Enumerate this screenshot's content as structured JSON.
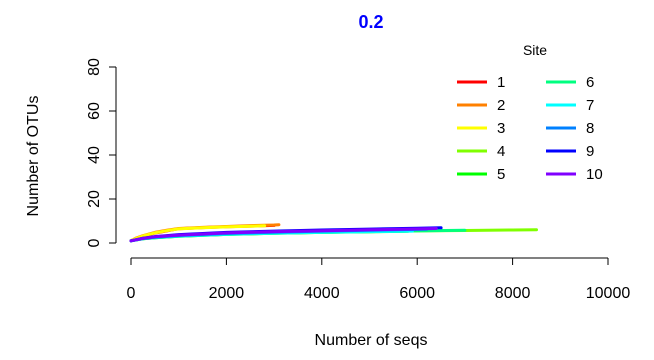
{
  "chart_data": {
    "type": "line",
    "title": "0.2",
    "title_color": "#0000ff",
    "xlabel": "Number of seqs",
    "ylabel": "Number of OTUs",
    "xlim": [
      0,
      10000
    ],
    "ylim": [
      0,
      80
    ],
    "x_ticks": [
      0,
      2000,
      4000,
      6000,
      8000,
      10000
    ],
    "y_ticks": [
      0,
      20,
      40,
      60,
      80
    ],
    "grid": false,
    "legend": {
      "title": "Site",
      "placement": "top-right",
      "columns": 2
    },
    "series": [
      {
        "name": "1",
        "color": "#ff0000",
        "x": [
          0,
          100,
          250,
          500,
          750,
          1000,
          1500,
          2000,
          2500,
          3000
        ],
        "y": [
          1.0,
          2.0,
          3.0,
          4.5,
          5.5,
          6.5,
          7.0,
          7.4,
          7.7,
          8.0
        ]
      },
      {
        "name": "2",
        "color": "#ff8000",
        "x": [
          0,
          100,
          250,
          500,
          750,
          1000,
          1500,
          2000,
          2500,
          3000,
          3100
        ],
        "y": [
          1.0,
          2.2,
          3.3,
          4.8,
          5.8,
          6.6,
          7.1,
          7.5,
          7.9,
          8.2,
          8.3
        ]
      },
      {
        "name": "3",
        "color": "#ffff00",
        "x": [
          0,
          100,
          250,
          500,
          750,
          1000,
          1500,
          2000,
          2500,
          2800
        ],
        "y": [
          1.0,
          2.0,
          3.2,
          4.6,
          5.6,
          6.4,
          6.9,
          7.3,
          7.6,
          7.8
        ]
      },
      {
        "name": "4",
        "color": "#80ff00",
        "x": [
          0,
          250,
          500,
          1000,
          2000,
          3000,
          4000,
          5000,
          6000,
          7000,
          8000,
          8500
        ],
        "y": [
          1.0,
          2.0,
          2.5,
          3.2,
          4.0,
          4.5,
          4.9,
          5.2,
          5.5,
          5.7,
          5.9,
          6.0
        ]
      },
      {
        "name": "5",
        "color": "#00ff00",
        "x": [
          0,
          250,
          500,
          1000,
          2000,
          3000,
          4000,
          5000,
          5800
        ],
        "y": [
          1.0,
          1.9,
          2.4,
          3.1,
          3.9,
          4.4,
          4.8,
          5.1,
          5.3
        ]
      },
      {
        "name": "6",
        "color": "#00ff80",
        "x": [
          0,
          250,
          500,
          1000,
          2000,
          3000,
          4000,
          5000,
          6000,
          7000
        ],
        "y": [
          1.0,
          1.9,
          2.4,
          3.1,
          3.9,
          4.4,
          4.8,
          5.2,
          5.5,
          5.8
        ]
      },
      {
        "name": "7",
        "color": "#00ffff",
        "x": [
          0,
          250,
          500,
          1000,
          2000,
          3000,
          4000,
          5000,
          5900
        ],
        "y": [
          1.0,
          2.0,
          2.5,
          3.2,
          4.0,
          4.5,
          4.9,
          5.2,
          5.4
        ]
      },
      {
        "name": "8",
        "color": "#0080ff",
        "x": [
          0,
          250,
          500,
          1000,
          2000,
          3000,
          4000,
          5000,
          6000,
          6200
        ],
        "y": [
          1.0,
          2.0,
          2.6,
          3.4,
          4.3,
          4.9,
          5.4,
          5.8,
          6.2,
          6.3
        ]
      },
      {
        "name": "9",
        "color": "#0000ff",
        "x": [
          0,
          250,
          500,
          1000,
          2000,
          3000,
          4000,
          5000,
          6000,
          6500
        ],
        "y": [
          1.0,
          2.2,
          2.9,
          3.8,
          4.8,
          5.4,
          5.9,
          6.3,
          6.7,
          6.9
        ]
      },
      {
        "name": "10",
        "color": "#8000ff",
        "x": [
          0,
          250,
          500,
          1000,
          2000,
          3000,
          4000,
          5000,
          6000,
          6400
        ],
        "y": [
          1.0,
          2.1,
          2.8,
          3.6,
          4.6,
          5.2,
          5.6,
          6.0,
          6.4,
          6.6
        ]
      }
    ]
  }
}
